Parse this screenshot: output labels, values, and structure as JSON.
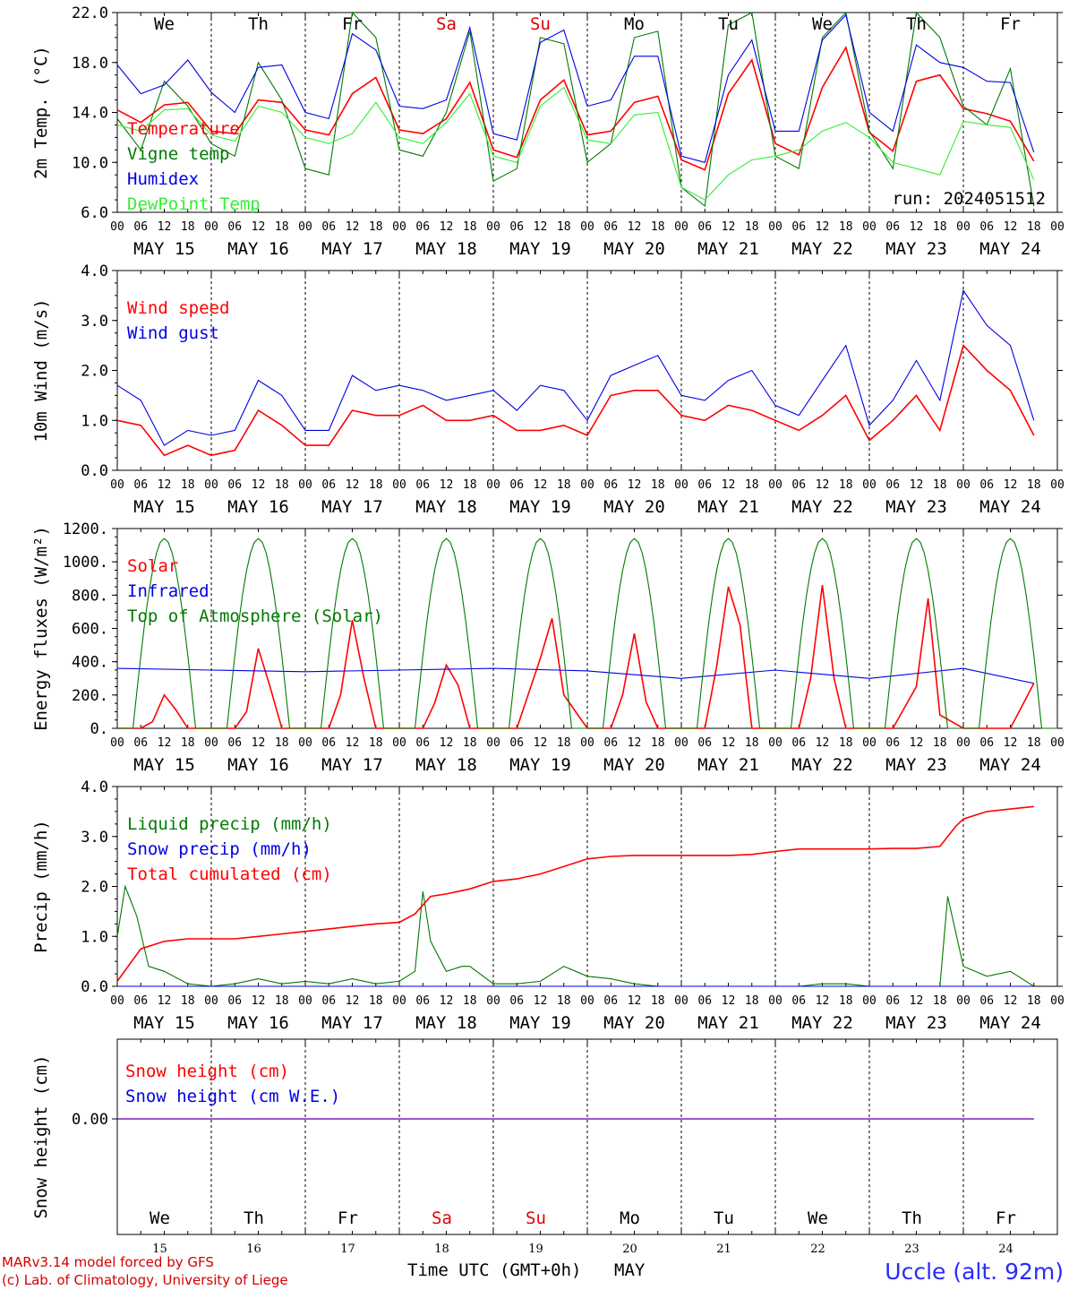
{
  "run_label": "run: 2024051512",
  "hour_ticks": [
    "00",
    "06",
    "12",
    "18"
  ],
  "day_labels": [
    "MAY 15",
    "MAY 16",
    "MAY 17",
    "MAY 18",
    "MAY 19",
    "MAY 20",
    "MAY 21",
    "MAY 22",
    "MAY 23",
    "MAY 24"
  ],
  "weekdays": [
    {
      "label": "We",
      "color": "#000000"
    },
    {
      "label": "Th",
      "color": "#000000"
    },
    {
      "label": "Fr",
      "color": "#000000"
    },
    {
      "label": "Sa",
      "color": "#e00000"
    },
    {
      "label": "Su",
      "color": "#e00000"
    },
    {
      "label": "Mo",
      "color": "#000000"
    },
    {
      "label": "Tu",
      "color": "#000000"
    },
    {
      "label": "We",
      "color": "#000000"
    },
    {
      "label": "Th",
      "color": "#000000"
    },
    {
      "label": "Fr",
      "color": "#000000"
    }
  ],
  "day_numbers": [
    "15",
    "16",
    "17",
    "18",
    "19",
    "20",
    "21",
    "22",
    "23",
    "24"
  ],
  "footer": {
    "credit_line1": "MARv3.14 model forced by GFS",
    "credit_line2": "(c) Lab. of Climatology, University of Liege",
    "xlabel": "Time UTC (GMT+0h)",
    "month": "MAY",
    "station": "Uccle (alt. 92m)"
  },
  "colors": {
    "red": "#ff0000",
    "green": "#007a00",
    "blue": "#0000e6",
    "lightgreen": "#33ee33",
    "purple": "#7a1fb5",
    "station": "#2a2aff",
    "credit": "#d40000"
  },
  "chart_data": [
    {
      "type": "line",
      "ylabel": "2m Temp. (°C)",
      "ylim": [
        6,
        22
      ],
      "yticks": [
        "22.0",
        "18.0",
        "14.0",
        "10.0",
        "6.0"
      ],
      "x_unit": "hours since 2024-05-15 00 UTC",
      "series": [
        {
          "name": "Temperature",
          "color": "red",
          "x": [
            0,
            6,
            12,
            18,
            24,
            30,
            36,
            42,
            48,
            54,
            60,
            66,
            72,
            78,
            84,
            90,
            96,
            102,
            108,
            114,
            120,
            126,
            132,
            138,
            144,
            150,
            156,
            162,
            168,
            174,
            180,
            186,
            192,
            198,
            204,
            210,
            216,
            222,
            228,
            234
          ],
          "values": [
            14.2,
            13.2,
            14.6,
            14.8,
            12.5,
            12.3,
            15.0,
            14.8,
            12.6,
            12.2,
            15.5,
            16.8,
            12.6,
            12.3,
            13.5,
            16.4,
            11.0,
            10.4,
            15.0,
            16.6,
            12.2,
            12.5,
            14.8,
            15.3,
            10.2,
            9.4,
            15.5,
            18.2,
            11.5,
            10.6,
            16.0,
            19.2,
            12.4,
            10.9,
            16.5,
            17.0,
            14.3,
            13.9,
            13.3,
            10.1
          ]
        },
        {
          "name": "Vigne temp",
          "color": "green",
          "x": [
            0,
            6,
            12,
            18,
            24,
            30,
            36,
            42,
            48,
            54,
            60,
            66,
            72,
            78,
            84,
            90,
            96,
            102,
            108,
            114,
            120,
            126,
            132,
            138,
            144,
            150,
            156,
            162,
            168,
            174,
            180,
            186,
            192,
            198,
            204,
            210,
            216,
            222,
            228,
            234
          ],
          "values": [
            13.5,
            11.0,
            16.5,
            14.5,
            11.5,
            10.5,
            18.0,
            15.0,
            9.5,
            9.0,
            22.0,
            20.0,
            11.0,
            10.5,
            14.0,
            20.5,
            8.5,
            9.5,
            20.0,
            19.5,
            10.0,
            11.5,
            20.0,
            20.5,
            8.0,
            6.5,
            21.0,
            22.0,
            10.5,
            9.5,
            20.0,
            22.0,
            12.5,
            9.5,
            22.0,
            20.0,
            14.5,
            13.0,
            17.5,
            6.5
          ]
        },
        {
          "name": "Humidex",
          "color": "blue",
          "x": [
            0,
            6,
            12,
            18,
            24,
            30,
            36,
            42,
            48,
            54,
            60,
            66,
            72,
            78,
            84,
            90,
            96,
            102,
            108,
            114,
            120,
            126,
            132,
            138,
            144,
            150,
            156,
            162,
            168,
            174,
            180,
            186,
            192,
            198,
            204,
            210,
            216,
            222,
            228,
            234
          ],
          "values": [
            17.8,
            15.5,
            16.2,
            18.2,
            15.6,
            14.0,
            17.6,
            17.8,
            14.0,
            13.5,
            20.3,
            19.0,
            14.5,
            14.3,
            15.0,
            20.8,
            12.3,
            11.8,
            19.6,
            20.6,
            14.5,
            15.0,
            18.5,
            18.5,
            10.5,
            10.0,
            17.0,
            19.8,
            12.5,
            12.5,
            19.8,
            21.8,
            14.0,
            12.5,
            19.4,
            18.0,
            17.6,
            16.5,
            16.4,
            10.8
          ]
        },
        {
          "name": "DewPoint Temp",
          "color": "lightgreen",
          "x": [
            0,
            6,
            12,
            18,
            24,
            30,
            36,
            42,
            48,
            54,
            60,
            66,
            72,
            78,
            84,
            90,
            96,
            102,
            108,
            114,
            120,
            126,
            132,
            138,
            144,
            150,
            156,
            162,
            168,
            174,
            180,
            186,
            192,
            198,
            204,
            210,
            216,
            222,
            228,
            234
          ],
          "values": [
            13.0,
            12.5,
            14.2,
            14.3,
            12.2,
            11.7,
            14.5,
            14.0,
            12.0,
            11.5,
            12.3,
            14.8,
            12.0,
            11.5,
            13.2,
            15.5,
            10.5,
            10.0,
            14.5,
            16.0,
            11.8,
            11.5,
            13.8,
            14.0,
            8.0,
            7.0,
            9.0,
            10.2,
            10.5,
            11.0,
            12.5,
            13.2,
            12.0,
            10.0,
            9.5,
            9.0,
            13.3,
            13.0,
            12.8,
            8.6
          ]
        }
      ]
    },
    {
      "type": "line",
      "ylabel": "10m Wind (m/s)",
      "ylim": [
        0,
        4
      ],
      "yticks": [
        "4.0",
        "3.0",
        "2.0",
        "1.0",
        "0.0"
      ],
      "series": [
        {
          "name": "Wind speed",
          "color": "red",
          "x": [
            0,
            6,
            12,
            18,
            24,
            30,
            36,
            42,
            48,
            54,
            60,
            66,
            72,
            78,
            84,
            90,
            96,
            102,
            108,
            114,
            120,
            126,
            132,
            138,
            144,
            150,
            156,
            162,
            168,
            174,
            180,
            186,
            192,
            198,
            204,
            210,
            216,
            222,
            228,
            234
          ],
          "values": [
            1.0,
            0.9,
            0.3,
            0.5,
            0.3,
            0.4,
            1.2,
            0.9,
            0.5,
            0.5,
            1.2,
            1.1,
            1.1,
            1.3,
            1.0,
            1.0,
            1.1,
            0.8,
            0.8,
            0.9,
            0.7,
            1.5,
            1.6,
            1.6,
            1.1,
            1.0,
            1.3,
            1.2,
            1.0,
            0.8,
            1.1,
            1.5,
            0.6,
            1.0,
            1.5,
            0.8,
            2.5,
            2.0,
            1.6,
            0.7
          ]
        },
        {
          "name": "Wind gust",
          "color": "blue",
          "x": [
            0,
            6,
            12,
            18,
            24,
            30,
            36,
            42,
            48,
            54,
            60,
            66,
            72,
            78,
            84,
            90,
            96,
            102,
            108,
            114,
            120,
            126,
            132,
            138,
            144,
            150,
            156,
            162,
            168,
            174,
            180,
            186,
            192,
            198,
            204,
            210,
            216,
            222,
            228,
            234
          ],
          "values": [
            1.7,
            1.4,
            0.5,
            0.8,
            0.7,
            0.8,
            1.8,
            1.5,
            0.8,
            0.8,
            1.9,
            1.6,
            1.7,
            1.6,
            1.4,
            1.5,
            1.6,
            1.2,
            1.7,
            1.6,
            1.0,
            1.9,
            2.1,
            2.3,
            1.5,
            1.4,
            1.8,
            2.0,
            1.3,
            1.1,
            1.8,
            2.5,
            0.9,
            1.4,
            2.2,
            1.4,
            3.6,
            2.9,
            2.5,
            1.0
          ]
        }
      ]
    },
    {
      "type": "line",
      "ylabel": "Energy fluxes (W/m²)",
      "ylim": [
        0,
        1200
      ],
      "yticks": [
        "1200.",
        "1000.",
        "800.",
        "600.",
        "400.",
        "200.",
        "0."
      ],
      "series": [
        {
          "name": "Solar",
          "color": "red",
          "x": [
            0,
            6,
            9,
            12,
            15,
            18,
            24,
            30,
            33,
            36,
            39,
            42,
            48,
            54,
            57,
            60,
            63,
            66,
            72,
            78,
            81,
            84,
            87,
            90,
            96,
            102,
            108,
            111,
            114,
            120,
            126,
            129,
            132,
            135,
            138,
            144,
            150,
            153,
            156,
            159,
            162,
            168,
            174,
            177,
            180,
            183,
            186,
            192,
            198,
            204,
            207,
            210,
            216,
            222,
            228,
            234
          ],
          "values": [
            0,
            0,
            40,
            200,
            110,
            0,
            0,
            0,
            100,
            480,
            250,
            0,
            0,
            0,
            200,
            650,
            300,
            0,
            0,
            0,
            150,
            380,
            260,
            0,
            0,
            0,
            420,
            660,
            200,
            0,
            0,
            200,
            570,
            160,
            0,
            0,
            0,
            370,
            850,
            620,
            0,
            0,
            0,
            300,
            860,
            300,
            0,
            0,
            0,
            250,
            780,
            80,
            0,
            0,
            0,
            270
          ]
        },
        {
          "name": "Infrared",
          "color": "blue",
          "x": [
            0,
            24,
            48,
            72,
            96,
            120,
            144,
            168,
            192,
            216,
            234
          ],
          "values": [
            360,
            350,
            340,
            350,
            360,
            345,
            300,
            350,
            300,
            360,
            270
          ]
        },
        {
          "name": "Top of Atmosphere (Solar)",
          "color": "green",
          "peak": 1140
        }
      ]
    },
    {
      "type": "line",
      "ylabel": "Precip (mm/h)",
      "ylim": [
        0,
        4
      ],
      "yticks": [
        "4.0",
        "3.0",
        "2.0",
        "1.0",
        "0.0"
      ],
      "series": [
        {
          "name": "Liquid precip (mm/h)",
          "color": "green",
          "x": [
            0,
            2,
            5,
            8,
            12,
            18,
            24,
            30,
            36,
            42,
            48,
            54,
            60,
            66,
            72,
            76,
            78,
            80,
            84,
            88,
            90,
            96,
            102,
            108,
            114,
            120,
            126,
            132,
            138,
            144,
            150,
            156,
            162,
            168,
            174,
            180,
            186,
            192,
            198,
            204,
            210,
            212,
            216,
            222,
            228,
            234
          ],
          "values": [
            1.0,
            2.0,
            1.4,
            0.4,
            0.3,
            0.05,
            0.0,
            0.05,
            0.15,
            0.05,
            0.1,
            0.05,
            0.15,
            0.05,
            0.1,
            0.3,
            1.9,
            0.9,
            0.3,
            0.4,
            0.4,
            0.05,
            0.05,
            0.1,
            0.4,
            0.2,
            0.15,
            0.05,
            0.0,
            0.0,
            0.0,
            0.0,
            0.0,
            0.0,
            0.0,
            0.05,
            0.05,
            0.0,
            0.0,
            0.0,
            0.0,
            1.8,
            0.4,
            0.2,
            0.3,
            0.0
          ]
        },
        {
          "name": "Snow precip (mm/h)",
          "color": "blue",
          "x": [
            0,
            234
          ],
          "values": [
            0,
            0
          ]
        },
        {
          "name": "Total cumulated (cm)",
          "color": "red",
          "x": [
            0,
            6,
            12,
            18,
            24,
            30,
            36,
            42,
            48,
            54,
            60,
            66,
            72,
            76,
            80,
            84,
            90,
            96,
            102,
            108,
            114,
            120,
            126,
            132,
            138,
            144,
            150,
            156,
            162,
            168,
            174,
            180,
            186,
            192,
            198,
            204,
            210,
            214,
            216,
            222,
            228,
            234
          ],
          "values": [
            0.1,
            0.75,
            0.9,
            0.95,
            0.95,
            0.95,
            1.0,
            1.05,
            1.1,
            1.15,
            1.2,
            1.25,
            1.28,
            1.45,
            1.8,
            1.85,
            1.95,
            2.1,
            2.15,
            2.25,
            2.4,
            2.55,
            2.6,
            2.62,
            2.62,
            2.62,
            2.62,
            2.62,
            2.64,
            2.7,
            2.75,
            2.75,
            2.75,
            2.75,
            2.76,
            2.76,
            2.8,
            3.2,
            3.35,
            3.5,
            3.55,
            3.6
          ]
        }
      ]
    },
    {
      "type": "line",
      "ylabel": "Snow height (cm)",
      "yticks": [
        "0.00"
      ],
      "series": [
        {
          "name": "Snow height (cm)",
          "color": "red",
          "x": [
            0,
            234
          ],
          "values": [
            0,
            0
          ]
        },
        {
          "name": "Snow height (cm W.E.)",
          "color": "blue",
          "x": [
            0,
            234
          ],
          "values": [
            0,
            0
          ]
        }
      ]
    }
  ]
}
